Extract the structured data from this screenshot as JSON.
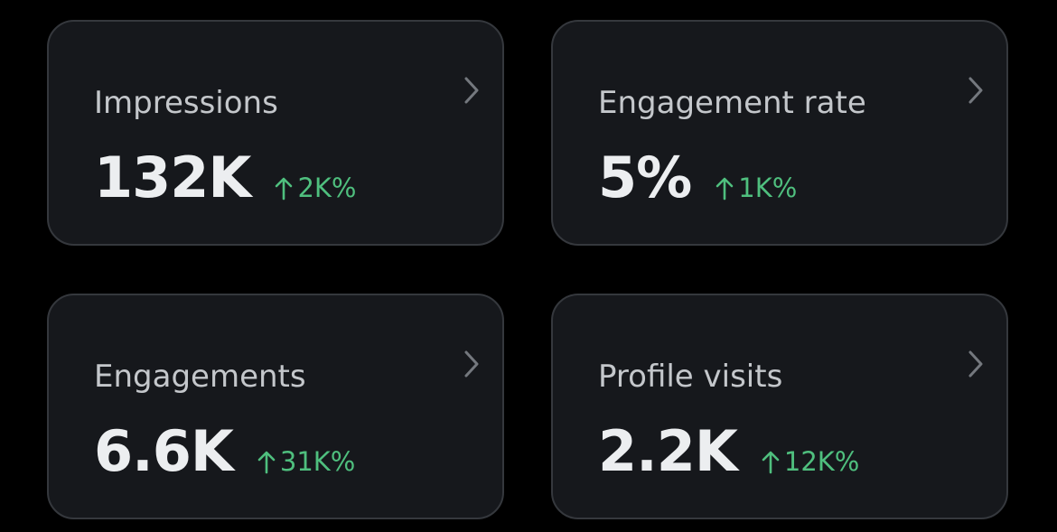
{
  "cards": [
    {
      "label": "Impressions",
      "value": "132K",
      "change": "2K%"
    },
    {
      "label": "Engagement rate",
      "value": "5%",
      "change": "1K%"
    },
    {
      "label": "Engagements",
      "value": "6.6K",
      "change": "31K%"
    },
    {
      "label": "Profile visits",
      "value": "2.2K",
      "change": "12K%"
    }
  ]
}
